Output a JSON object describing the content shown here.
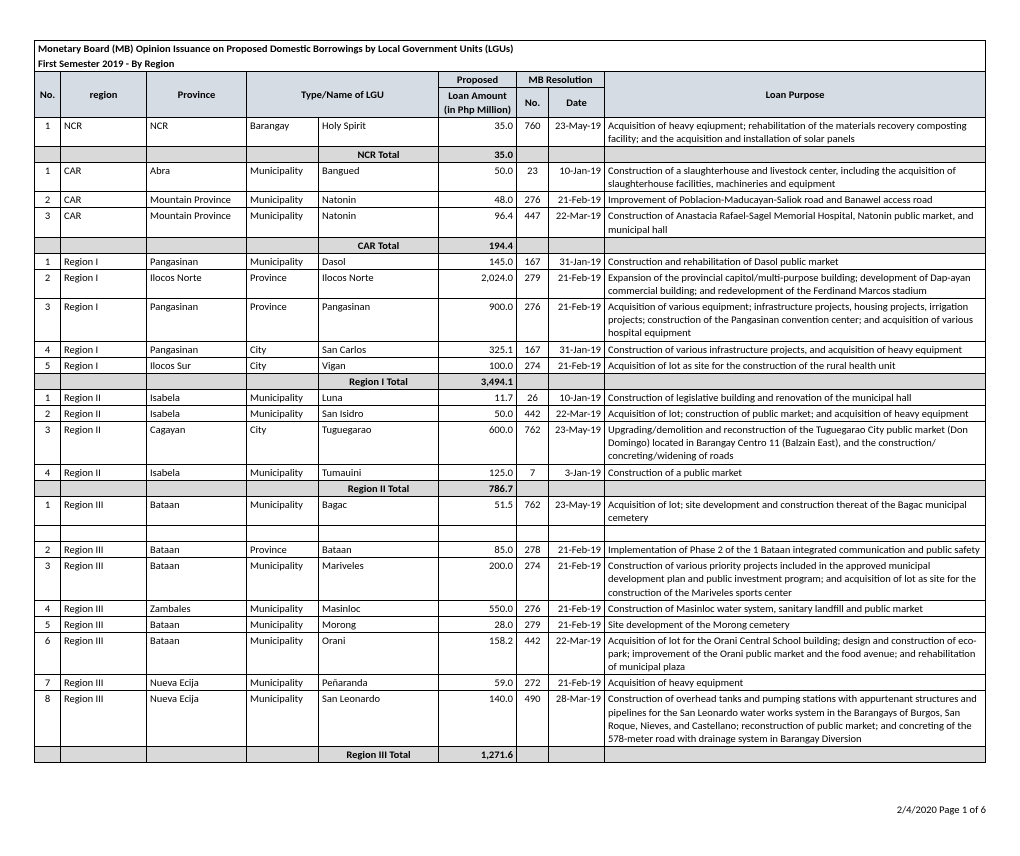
{
  "title_line1": "Monetary Board (MB) Opinion Issuance on Proposed Domestic Borrowings by Local Government Units (LGUs)",
  "title_line2": "First Semester 2019 - By Region",
  "headers": {
    "proposed": "Proposed",
    "mb_resolution": "MB Resolution",
    "no": "No.",
    "region": "region",
    "province": "Province",
    "type_name": "Type/Name of LGU",
    "loan_amount": "Loan Amount\n(in Php Million)",
    "res_no": "No.",
    "date": "Date",
    "purpose": "Loan Purpose"
  },
  "colors": {
    "header_bg": "#d6dce4",
    "shade_bg": "#d9d9d9",
    "border": "#000000",
    "text": "#000000",
    "background": "#ffffff"
  },
  "font": {
    "family": "Calibri",
    "size_pt": 8
  },
  "sections": [
    {
      "rows": [
        {
          "no": "1",
          "region": "NCR",
          "province": "NCR",
          "type": "Barangay",
          "lgu": "Holy Spirit",
          "amount": "35.0",
          "res_no": "760",
          "date": "23-May-19",
          "purpose": "Acquisition of heavy eqiupment; rehabilitation of the materials recovery composting facility; and the acquisition and installation of solar panels"
        }
      ],
      "total_label": "NCR Total",
      "total_amount": "35.0"
    },
    {
      "rows": [
        {
          "no": "1",
          "region": "CAR",
          "province": "Abra",
          "type": "Municipality",
          "lgu": "Bangued",
          "amount": "50.0",
          "res_no": "23",
          "date": "10-Jan-19",
          "purpose": "Construction of a slaughterhouse and livestock center, including the acquisition of slaughterhouse facilities, machineries and equipment"
        },
        {
          "no": "2",
          "region": "CAR",
          "province": "Mountain Province",
          "type": "Municipality",
          "lgu": "Natonin",
          "amount": "48.0",
          "res_no": "276",
          "date": "21-Feb-19",
          "purpose": "Improvement of Poblacion-Maducayan-Saliok road and Banawel access road"
        },
        {
          "no": "3",
          "region": "CAR",
          "province": "Mountain Province",
          "type": "Municipality",
          "lgu": "Natonin",
          "amount": "96.4",
          "res_no": "447",
          "date": "22-Mar-19",
          "purpose": "Construction of Anastacia Rafael-Sagel Memorial Hospital, Natonin public market, and municipal hall"
        }
      ],
      "total_label": "CAR Total",
      "total_amount": "194.4"
    },
    {
      "rows": [
        {
          "no": "1",
          "region": "Region I",
          "province": "Pangasinan",
          "type": "Municipality",
          "lgu": "Dasol",
          "amount": "145.0",
          "res_no": "167",
          "date": "31-Jan-19",
          "purpose": "Construction and rehabilitation of Dasol public market"
        },
        {
          "no": "2",
          "region": "Region I",
          "province": "Ilocos Norte",
          "type": "Province",
          "lgu": "Ilocos Norte",
          "amount": "2,024.0",
          "res_no": "279",
          "date": "21-Feb-19",
          "purpose": "Expansion of the provincial capitol/multi-purpose building; development of Dap-ayan commercial building; and redevelopment of the Ferdinand Marcos stadium"
        },
        {
          "no": "3",
          "region": "Region I",
          "province": "Pangasinan",
          "type": "Province",
          "lgu": "Pangasinan",
          "amount": "900.0",
          "res_no": "276",
          "date": "21-Feb-19",
          "purpose": "Acquisition of various equipment; infrastructure projects, housing projects, irrigation projects; construction of the Pangasinan convention center; and acquisition of various hospital equipment"
        },
        {
          "no": "4",
          "region": "Region I",
          "province": "Pangasinan",
          "type": "City",
          "lgu": "San Carlos",
          "amount": "325.1",
          "res_no": "167",
          "date": "31-Jan-19",
          "purpose": "Construction of various infrastructure projects, and acquisition of heavy equipment"
        },
        {
          "no": "5",
          "region": "Region I",
          "province": "Ilocos Sur",
          "type": "City",
          "lgu": "Vigan",
          "amount": "100.0",
          "res_no": "274",
          "date": "21-Feb-19",
          "purpose": "Acquisition of lot as site for the construction of the rural health unit"
        }
      ],
      "total_label": "Region I Total",
      "total_amount": "3,494.1"
    },
    {
      "rows": [
        {
          "no": "1",
          "region": "Region II",
          "province": "Isabela",
          "type": "Municipality",
          "lgu": "Luna",
          "amount": "11.7",
          "res_no": "26",
          "date": "10-Jan-19",
          "purpose": "Construction of legislative building and renovation of the municipal hall"
        },
        {
          "no": "2",
          "region": "Region II",
          "province": "Isabela",
          "type": "Municipality",
          "lgu": "San Isidro",
          "amount": "50.0",
          "res_no": "442",
          "date": "22-Mar-19",
          "purpose": "Acquisition of lot; construction of public market; and acquisition of heavy equipment"
        },
        {
          "no": "3",
          "region": "Region II",
          "province": "Cagayan",
          "type": "City",
          "lgu": "Tuguegarao",
          "amount": "600.0",
          "res_no": "762",
          "date": "23-May-19",
          "purpose": "Upgrading/demolition and reconstruction of the Tuguegarao City public market (Don Domingo) located in Barangay Centro 11 (Balzain East), and the construction/ concreting/widening of roads"
        },
        {
          "no": "4",
          "region": "Region II",
          "province": "Isabela",
          "type": "Municipality",
          "lgu": "Tumauini",
          "amount": "125.0",
          "res_no": "7",
          "date": "3-Jan-19",
          "purpose": "Construction of a public market"
        }
      ],
      "total_label": "Region II Total",
      "total_amount": "786.7"
    },
    {
      "rows": [
        {
          "no": "1",
          "region": "Region III",
          "province": "Bataan",
          "type": "Municipality",
          "lgu": "Bagac",
          "amount": "51.5",
          "res_no": "762",
          "date": "23-May-19",
          "purpose": "Acquisition of lot; site development and construction thereat of the Bagac municipal cemetery",
          "extra_blank": true
        },
        {
          "no": "2",
          "region": "Region III",
          "province": "Bataan",
          "type": "Province",
          "lgu": "Bataan",
          "amount": "85.0",
          "res_no": "278",
          "date": "21-Feb-19",
          "purpose": "Implementation of Phase 2 of the 1 Bataan integrated communication and public safety"
        },
        {
          "no": "3",
          "region": "Region III",
          "province": "Bataan",
          "type": "Municipality",
          "lgu": "Mariveles",
          "amount": "200.0",
          "res_no": "274",
          "date": "21-Feb-19",
          "purpose": "Construction of various priority projects included in the approved municipal development plan and public investment program; and acquisition of lot as site for the construction of the Mariveles sports center"
        },
        {
          "no": "4",
          "region": "Region III",
          "province": "Zambales",
          "type": "Municipality",
          "lgu": "Masinloc",
          "amount": "550.0",
          "res_no": "276",
          "date": "21-Feb-19",
          "purpose": "Construction of Masinloc water system, sanitary landfill and public market"
        },
        {
          "no": "5",
          "region": "Region III",
          "province": "Bataan",
          "type": "Municipality",
          "lgu": "Morong",
          "amount": "28.0",
          "res_no": "279",
          "date": "21-Feb-19",
          "purpose": "Site development of the Morong cemetery"
        },
        {
          "no": "6",
          "region": "Region III",
          "province": "Bataan",
          "type": "Municipality",
          "lgu": "Orani",
          "amount": "158.2",
          "res_no": "442",
          "date": "22-Mar-19",
          "purpose": "Acquisition of lot for the Orani Central School building;  design and construction of eco-park; improvement of the Orani public market and the food avenue; and rehabilitation of municipal plaza"
        },
        {
          "no": "7",
          "region": "Region III",
          "province": "Nueva Ecija",
          "type": "Municipality",
          "lgu": "Peñaranda",
          "amount": "59.0",
          "res_no": "272",
          "date": "21-Feb-19",
          "purpose": "Acquisition of heavy equipment"
        },
        {
          "no": "8",
          "region": "Region III",
          "province": "Nueva Ecija",
          "type": "Municipality",
          "lgu": "San Leonardo",
          "amount": "140.0",
          "res_no": "490",
          "date": "28-Mar-19",
          "purpose": "Construction of overhead tanks and pumping stations with appurtenant structures and pipelines for the San Leonardo water works system in the Barangays of Burgos, San Roque, Nieves, and Castellano; reconstruction of public market; and concreting of the 578-meter road with drainage system in Barangay Diversion"
        }
      ],
      "total_label": "Region III Total",
      "total_amount": "1,271.6"
    }
  ],
  "footer": "2/4/2020 Page 1 of 6"
}
